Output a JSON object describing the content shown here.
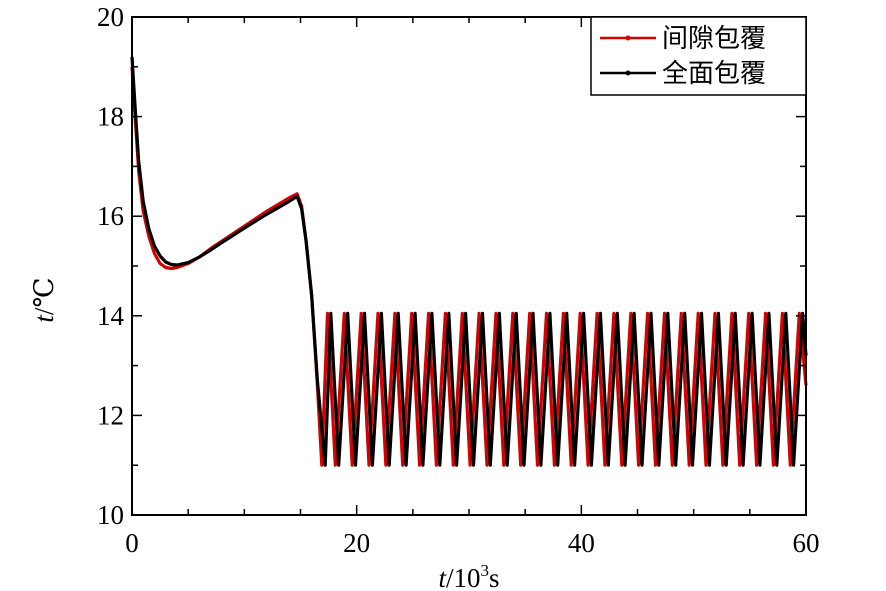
{
  "chart_data": {
    "type": "line",
    "title": "",
    "xlabel": "t/10³s",
    "xlabel_var": "t",
    "xlabel_unit_base": "/10",
    "xlabel_unit_exp": "3",
    "xlabel_unit_tail": "s",
    "ylabel": "t/℃",
    "ylabel_var": "t",
    "ylabel_unit": "/℃",
    "xlim": [
      0,
      60
    ],
    "ylim": [
      10,
      20
    ],
    "xticks": [
      0,
      20,
      40,
      60
    ],
    "yticks": [
      10,
      12,
      14,
      16,
      18,
      20
    ],
    "grid": false,
    "legend_position": "top-right",
    "series": [
      {
        "name": "间隙包覆",
        "color": "#d40000",
        "points": [
          [
            0.0,
            19.0
          ],
          [
            0.3,
            17.9
          ],
          [
            0.6,
            16.9
          ],
          [
            1.0,
            16.1
          ],
          [
            1.5,
            15.6
          ],
          [
            2.0,
            15.25
          ],
          [
            2.5,
            15.05
          ],
          [
            3.0,
            14.97
          ],
          [
            3.5,
            14.95
          ],
          [
            4.0,
            14.97
          ],
          [
            5.0,
            15.05
          ],
          [
            6.0,
            15.18
          ],
          [
            7.0,
            15.35
          ],
          [
            8.0,
            15.5
          ],
          [
            10.0,
            15.8
          ],
          [
            12.0,
            16.1
          ],
          [
            14.0,
            16.37
          ],
          [
            14.7,
            16.45
          ],
          [
            15.1,
            16.2
          ],
          [
            15.5,
            15.5
          ],
          [
            16.0,
            14.4
          ],
          [
            16.5,
            12.6
          ],
          [
            16.9,
            11.0
          ],
          [
            17.4,
            14.05
          ],
          [
            18.1,
            11.0
          ],
          [
            18.9,
            14.05
          ],
          [
            19.6,
            11.0
          ],
          [
            20.4,
            14.05
          ],
          [
            21.1,
            11.0
          ],
          [
            21.9,
            14.05
          ],
          [
            22.6,
            11.0
          ],
          [
            23.4,
            14.05
          ],
          [
            24.1,
            11.0
          ],
          [
            24.9,
            14.05
          ],
          [
            25.6,
            11.0
          ],
          [
            26.4,
            14.05
          ],
          [
            27.1,
            11.0
          ],
          [
            27.9,
            14.05
          ],
          [
            28.6,
            11.0
          ],
          [
            29.4,
            14.05
          ],
          [
            30.1,
            11.0
          ],
          [
            30.9,
            14.05
          ],
          [
            31.6,
            11.0
          ],
          [
            32.4,
            14.05
          ],
          [
            33.1,
            11.0
          ],
          [
            33.9,
            14.05
          ],
          [
            34.6,
            11.0
          ],
          [
            35.4,
            14.05
          ],
          [
            36.1,
            11.0
          ],
          [
            36.9,
            14.05
          ],
          [
            37.6,
            11.0
          ],
          [
            38.4,
            14.05
          ],
          [
            39.1,
            11.0
          ],
          [
            39.9,
            14.05
          ],
          [
            40.6,
            11.0
          ],
          [
            41.4,
            14.05
          ],
          [
            42.1,
            11.0
          ],
          [
            42.9,
            14.05
          ],
          [
            43.6,
            11.0
          ],
          [
            44.4,
            14.05
          ],
          [
            45.1,
            11.0
          ],
          [
            45.9,
            14.05
          ],
          [
            46.6,
            11.0
          ],
          [
            47.4,
            14.05
          ],
          [
            48.1,
            11.0
          ],
          [
            48.9,
            14.05
          ],
          [
            49.6,
            11.0
          ],
          [
            50.4,
            14.05
          ],
          [
            51.1,
            11.0
          ],
          [
            51.9,
            14.05
          ],
          [
            52.6,
            11.0
          ],
          [
            53.4,
            14.05
          ],
          [
            54.1,
            11.0
          ],
          [
            54.9,
            14.05
          ],
          [
            55.6,
            11.0
          ],
          [
            56.4,
            14.05
          ],
          [
            57.1,
            11.0
          ],
          [
            57.9,
            14.05
          ],
          [
            58.6,
            11.0
          ],
          [
            59.4,
            14.05
          ],
          [
            60.0,
            12.6
          ]
        ]
      },
      {
        "name": "全面包覆",
        "color": "#000000",
        "points": [
          [
            0.0,
            19.2
          ],
          [
            0.3,
            18.1
          ],
          [
            0.6,
            17.1
          ],
          [
            1.0,
            16.3
          ],
          [
            1.5,
            15.75
          ],
          [
            2.0,
            15.4
          ],
          [
            2.5,
            15.2
          ],
          [
            3.0,
            15.08
          ],
          [
            3.5,
            15.03
          ],
          [
            4.0,
            15.02
          ],
          [
            5.0,
            15.07
          ],
          [
            6.0,
            15.18
          ],
          [
            7.0,
            15.32
          ],
          [
            8.0,
            15.47
          ],
          [
            10.0,
            15.76
          ],
          [
            12.0,
            16.04
          ],
          [
            14.0,
            16.3
          ],
          [
            14.7,
            16.4
          ],
          [
            15.1,
            16.15
          ],
          [
            15.5,
            15.5
          ],
          [
            16.0,
            14.4
          ],
          [
            16.5,
            12.7
          ],
          [
            17.2,
            11.0
          ],
          [
            17.7,
            14.05
          ],
          [
            18.4,
            11.0
          ],
          [
            19.2,
            14.05
          ],
          [
            19.9,
            11.0
          ],
          [
            20.7,
            14.05
          ],
          [
            21.4,
            11.0
          ],
          [
            22.2,
            14.05
          ],
          [
            22.9,
            11.0
          ],
          [
            23.7,
            14.05
          ],
          [
            24.4,
            11.0
          ],
          [
            25.2,
            14.05
          ],
          [
            25.9,
            11.0
          ],
          [
            26.7,
            14.05
          ],
          [
            27.4,
            11.0
          ],
          [
            28.2,
            14.05
          ],
          [
            28.9,
            11.0
          ],
          [
            29.7,
            14.05
          ],
          [
            30.4,
            11.0
          ],
          [
            31.2,
            14.05
          ],
          [
            31.9,
            11.0
          ],
          [
            32.7,
            14.05
          ],
          [
            33.4,
            11.0
          ],
          [
            34.2,
            14.05
          ],
          [
            34.9,
            11.0
          ],
          [
            35.7,
            14.05
          ],
          [
            36.4,
            11.0
          ],
          [
            37.2,
            14.05
          ],
          [
            37.9,
            11.0
          ],
          [
            38.7,
            14.05
          ],
          [
            39.4,
            11.0
          ],
          [
            40.2,
            14.05
          ],
          [
            40.9,
            11.0
          ],
          [
            41.7,
            14.05
          ],
          [
            42.4,
            11.0
          ],
          [
            43.2,
            14.05
          ],
          [
            43.9,
            11.0
          ],
          [
            44.7,
            14.05
          ],
          [
            45.4,
            11.0
          ],
          [
            46.2,
            14.05
          ],
          [
            46.9,
            11.0
          ],
          [
            47.7,
            14.05
          ],
          [
            48.4,
            11.0
          ],
          [
            49.2,
            14.05
          ],
          [
            49.9,
            11.0
          ],
          [
            50.7,
            14.05
          ],
          [
            51.4,
            11.0
          ],
          [
            52.2,
            14.05
          ],
          [
            52.9,
            11.0
          ],
          [
            53.7,
            14.05
          ],
          [
            54.4,
            11.0
          ],
          [
            55.2,
            14.05
          ],
          [
            55.9,
            11.0
          ],
          [
            56.7,
            14.05
          ],
          [
            57.4,
            11.0
          ],
          [
            58.2,
            14.05
          ],
          [
            58.9,
            11.0
          ],
          [
            59.7,
            14.05
          ],
          [
            60.0,
            13.2
          ]
        ]
      }
    ]
  }
}
